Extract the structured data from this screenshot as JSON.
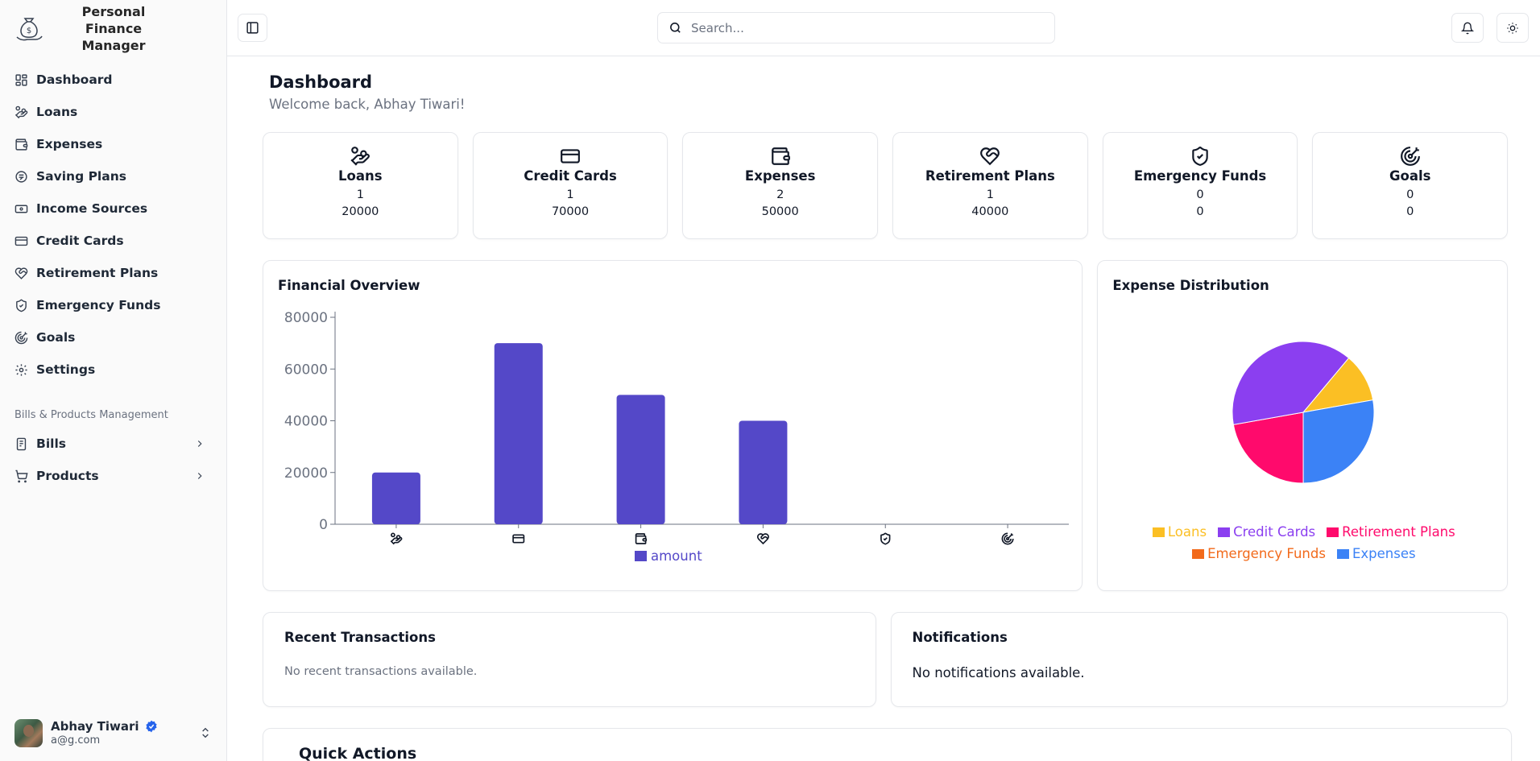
{
  "app": {
    "title_line1": "Personal Finance",
    "title_line2": "Manager"
  },
  "sidebar": {
    "items": [
      {
        "label": "Dashboard",
        "icon": "dashboard-icon"
      },
      {
        "label": "Loans",
        "icon": "hand-coins-icon"
      },
      {
        "label": "Expenses",
        "icon": "wallet-icon"
      },
      {
        "label": "Saving Plans",
        "icon": "coins-icon"
      },
      {
        "label": "Income Sources",
        "icon": "banknote-icon"
      },
      {
        "label": "Credit Cards",
        "icon": "credit-card-icon"
      },
      {
        "label": "Retirement Plans",
        "icon": "heart-handshake-icon"
      },
      {
        "label": "Emergency Funds",
        "icon": "shield-icon"
      },
      {
        "label": "Goals",
        "icon": "target-icon"
      },
      {
        "label": "Settings",
        "icon": "gear-icon"
      }
    ],
    "group_label": "Bills & Products Management",
    "group_items": [
      {
        "label": "Bills",
        "icon": "receipt-icon"
      },
      {
        "label": "Products",
        "icon": "cart-icon"
      }
    ],
    "user": {
      "name": "Abhay Tiwari",
      "email": "a@g.com"
    }
  },
  "header": {
    "search_placeholder": "Search..."
  },
  "page": {
    "title": "Dashboard",
    "subtitle": "Welcome back, Abhay Tiwari!"
  },
  "stats": [
    {
      "title": "Loans",
      "count": "1",
      "amount": "20000",
      "icon": "hand-coins-icon"
    },
    {
      "title": "Credit Cards",
      "count": "1",
      "amount": "70000",
      "icon": "credit-card-icon"
    },
    {
      "title": "Expenses",
      "count": "2",
      "amount": "50000",
      "icon": "wallet-icon"
    },
    {
      "title": "Retirement Plans",
      "count": "1",
      "amount": "40000",
      "icon": "heart-handshake-icon"
    },
    {
      "title": "Emergency Funds",
      "count": "0",
      "amount": "0",
      "icon": "shield-icon"
    },
    {
      "title": "Goals",
      "count": "0",
      "amount": "0",
      "icon": "target-icon"
    }
  ],
  "chart_data": [
    {
      "type": "bar",
      "title": "Financial Overview",
      "categories": [
        "hand-coins-icon",
        "credit-card-icon",
        "wallet-icon",
        "heart-handshake-icon",
        "shield-icon",
        "target-icon"
      ],
      "series": [
        {
          "name": "amount",
          "values": [
            20000,
            70000,
            50000,
            40000,
            0,
            0
          ]
        }
      ],
      "yticks": [
        "0",
        "20000",
        "40000",
        "60000",
        "80000"
      ],
      "ylim": [
        0,
        80000
      ],
      "legend": "bottom",
      "color": "#5448c8"
    },
    {
      "type": "pie",
      "title": "Expense Distribution",
      "slices": [
        {
          "name": "Loans",
          "value": 20000,
          "color": "#fbbf24"
        },
        {
          "name": "Credit Cards",
          "value": 70000,
          "color": "#8b3ff0"
        },
        {
          "name": "Retirement Plans",
          "value": 40000,
          "color": "#ff0a6c"
        },
        {
          "name": "Emergency Funds",
          "value": 0,
          "color": "#f26a1b"
        },
        {
          "name": "Expenses",
          "value": 50000,
          "color": "#3b82f6"
        }
      ],
      "legend": "bottom"
    }
  ],
  "recent": {
    "title": "Recent Transactions",
    "empty": "No recent transactions available."
  },
  "notifications": {
    "title": "Notifications",
    "empty": "No notifications available."
  },
  "quick_actions": {
    "title": "Quick Actions"
  }
}
